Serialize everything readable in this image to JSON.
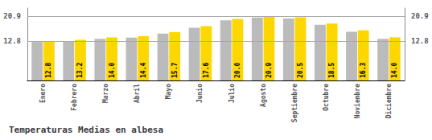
{
  "chart_data": {
    "type": "bar",
    "title": "Temperaturas Medias en albesa",
    "categories": [
      "Enero",
      "Febrero",
      "Marzo",
      "Abril",
      "Mayo",
      "Junio",
      "Julio",
      "Agosto",
      "Septiembre",
      "Octubre",
      "Noviembre",
      "Diciembre"
    ],
    "series": [
      {
        "color": "#BBBBBB",
        "values": [
          12.5,
          12.8,
          13.5,
          13.9,
          15.2,
          17.1,
          19.5,
          20.4,
          20.1,
          18.1,
          15.8,
          13.5
        ]
      },
      {
        "color": "#FFD700",
        "values": [
          12.8,
          13.2,
          14.0,
          14.4,
          15.7,
          17.6,
          20.0,
          20.9,
          20.5,
          18.5,
          16.3,
          14.0
        ],
        "data_labels": true,
        "value_labels": [
          "12.8",
          "13.2",
          "14.0",
          "14.4",
          "15.7",
          "17.6",
          "20.0",
          "20.9",
          "20.5",
          "18.5",
          "16.3",
          "14.0"
        ]
      }
    ],
    "ylim": [
      0.0,
      23.5
    ],
    "yticks": [
      12.8,
      20.9
    ],
    "y2lim": [
      0.0,
      23.5
    ],
    "y2ticks": [
      12.8,
      20.9
    ],
    "grid": true
  }
}
